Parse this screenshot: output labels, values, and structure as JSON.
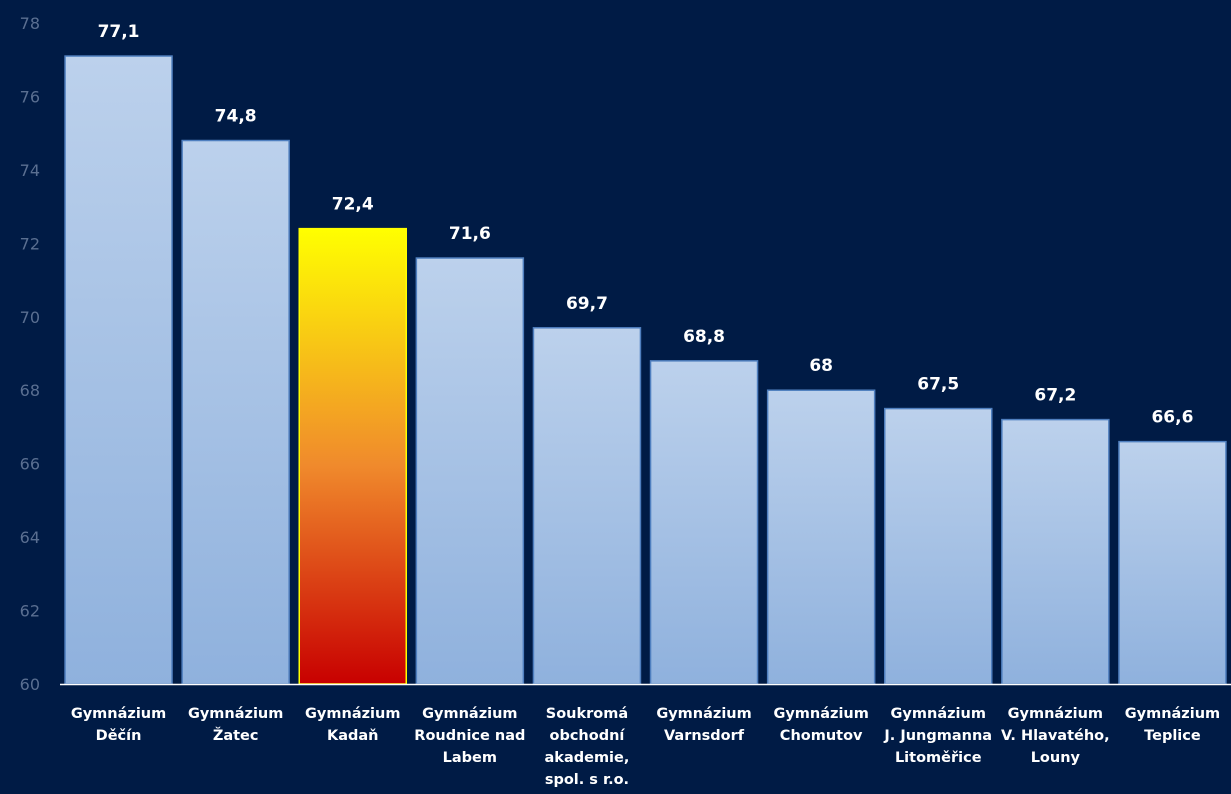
{
  "chart_data": {
    "type": "bar",
    "categories": [
      [
        "Gymnázium",
        "Děčín"
      ],
      [
        "Gymnázium",
        "Žatec"
      ],
      [
        "Gymnázium",
        "Kadaň"
      ],
      [
        "Gymnázium",
        "Roudnice nad",
        "Labem"
      ],
      [
        "Soukromá",
        "obchodní",
        "akademie,",
        "spol. s r.o."
      ],
      [
        "Gymnázium",
        "Varnsdorf"
      ],
      [
        "Gymnázium",
        "Chomutov"
      ],
      [
        "Gymnázium",
        "J. Jungmanna",
        "Litoměřice"
      ],
      [
        "Gymnázium",
        "V. Hlavatého,",
        "Louny"
      ],
      [
        "Gymnázium",
        "Teplice"
      ]
    ],
    "values": [
      77.1,
      74.8,
      72.4,
      71.6,
      69.7,
      68.8,
      68,
      67.5,
      67.2,
      66.6
    ],
    "value_labels": [
      "77,1",
      "74,8",
      "72,4",
      "71,6",
      "69,7",
      "68,8",
      "68",
      "67,5",
      "67,2",
      "66,6"
    ],
    "highlight_index": 2,
    "ylim": [
      60,
      78
    ],
    "yticks": [
      60,
      62,
      64,
      66,
      68,
      70,
      72,
      74,
      76,
      78
    ],
    "grid": false,
    "title": "",
    "xlabel": "",
    "ylabel": ""
  },
  "colors": {
    "background": "#001b45",
    "bar_fill_top": "#bcd1ec",
    "bar_fill_bottom": "#8fb1dd",
    "bar_stroke": "#4f7fbf",
    "highlight_top": "#ffff00",
    "highlight_mid": "#f08a2c",
    "highlight_bottom": "#c80000",
    "tick_label": "#5a6f91",
    "value_label": "#ffffff",
    "category_label": "#ffffff",
    "axis_line": "#ffffff"
  }
}
